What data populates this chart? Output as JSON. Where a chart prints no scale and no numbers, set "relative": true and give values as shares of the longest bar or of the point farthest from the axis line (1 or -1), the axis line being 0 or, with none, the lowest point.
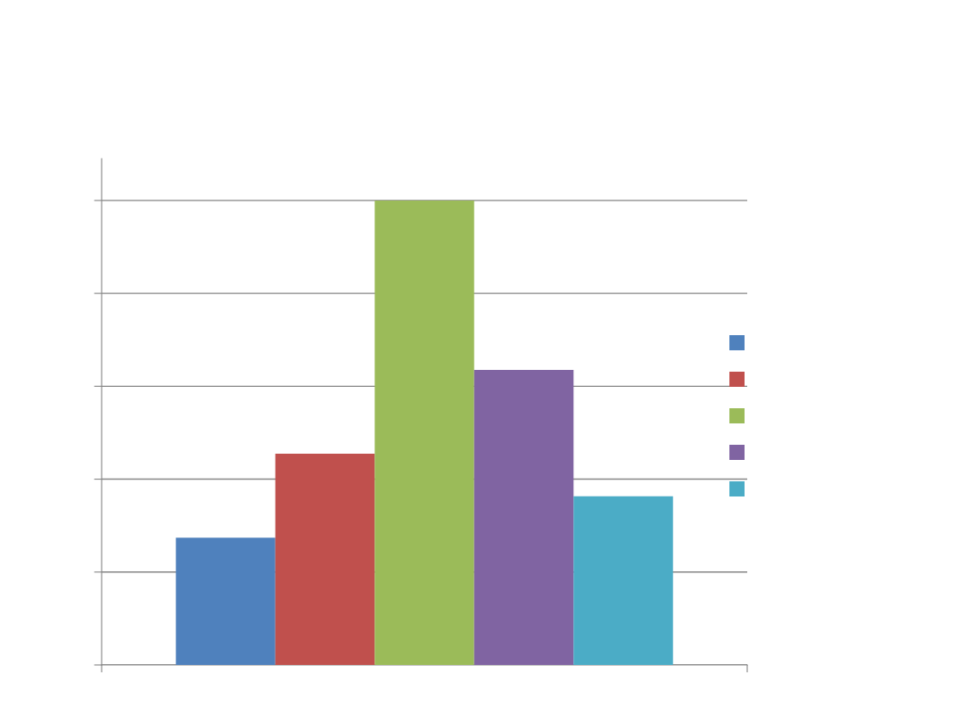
{
  "chart_data": {
    "type": "bar",
    "relative": true,
    "categories": [
      null
    ],
    "series": [
      {
        "color": "#4f81bd",
        "values": [
          0.274
        ]
      },
      {
        "color": "#c0504d",
        "values": [
          0.455
        ]
      },
      {
        "color": "#9bbb59",
        "values": [
          1
        ]
      },
      {
        "color": "#8064a2",
        "values": [
          0.635
        ]
      },
      {
        "color": "#4bacc6",
        "values": [
          0.363
        ]
      }
    ],
    "grid": "y",
    "tick_labels": false
  }
}
